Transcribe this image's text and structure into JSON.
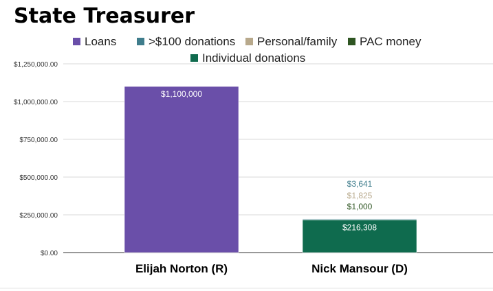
{
  "chart_data": {
    "type": "bar",
    "title": "State Treasurer",
    "categories": [
      "Elijah Norton (R)",
      "Nick Mansour (D)"
    ],
    "series": [
      {
        "name": "Loans",
        "color": "#6a4fa9",
        "values": [
          1100000,
          0
        ],
        "labels": [
          "$1,100,000",
          ""
        ]
      },
      {
        "name": ">$100 donations",
        "color": "#3f7d8c",
        "values": [
          0,
          3641
        ],
        "labels": [
          "",
          "$3,641"
        ]
      },
      {
        "name": "Personal/family",
        "color": "#b8a98c",
        "values": [
          0,
          1825
        ],
        "labels": [
          "",
          "$1,825"
        ]
      },
      {
        "name": "PAC money",
        "color": "#2e5522",
        "values": [
          0,
          1000
        ],
        "labels": [
          "",
          "$1,000"
        ]
      },
      {
        "name": "Individual donations",
        "color": "#0f6b4e",
        "values": [
          0,
          216308
        ],
        "labels": [
          "",
          "$216,308"
        ]
      }
    ],
    "ylim": [
      0,
      1250000
    ],
    "yticks": [
      "$0.00",
      "$250,000.00",
      "$500,000.00",
      "$750,000.00",
      "$1,000,000.00",
      "$1,250,000.00"
    ],
    "grid": true,
    "legend_position": "top"
  }
}
